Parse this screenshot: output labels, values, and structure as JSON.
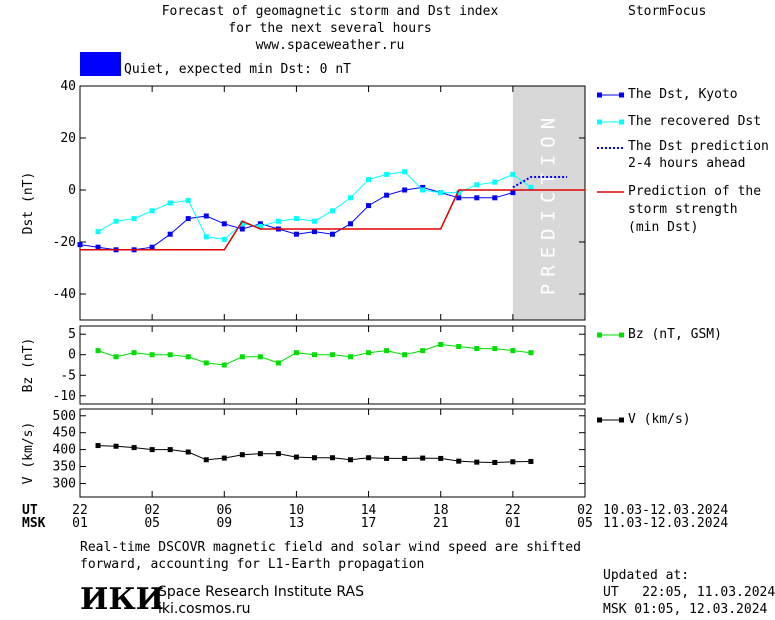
{
  "header": {
    "title_lines": [
      "Forecast of geomagnetic storm and Dst index",
      "for the next several hours",
      "www.spaceweather.ru"
    ],
    "brand": "StormFocus",
    "status_label": "Quiet, expected min Dst: 0 nT",
    "status_color": "#0000ff"
  },
  "prediction_label": "PREDICTION",
  "legend": {
    "dst_kyoto": "The Dst, Kyoto",
    "dst_recovered": "The recovered Dst",
    "dst_pred_1": "The Dst prediction",
    "dst_pred_2": "2-4 hours ahead",
    "storm_1": "Prediction of the",
    "storm_2": "storm strength",
    "storm_3": "(min Dst)",
    "bz": "Bz (nT, GSM)",
    "v": "V (km/s)"
  },
  "time_axis": {
    "ut_label": "UT",
    "msk_label": "MSK",
    "ut_ticks": [
      "22",
      "02",
      "06",
      "10",
      "14",
      "18",
      "22",
      "02"
    ],
    "msk_ticks": [
      "01",
      "05",
      "09",
      "13",
      "17",
      "21",
      "01",
      "05"
    ],
    "ut_range": "10.03-12.03.2024",
    "msk_range": "11.03-12.03.2024"
  },
  "footer": {
    "note_1": "Real-time DSCOVR magnetic field and solar wind speed are shifted",
    "note_2": "forward, accounting for L1-Earth propagation",
    "logo_text": "ИКИ",
    "institute": "Space Research Institute RAS",
    "site": "iki.cosmos.ru",
    "updated_label": "Updated at:",
    "updated_ut": "UT   22:05, 11.03.2024",
    "updated_msk": "MSK 01:05, 12.03.2024"
  },
  "colors": {
    "dst_kyoto": "#0000ff",
    "dst_recovered": "#00ffff",
    "dst_prediction": "#0000ff",
    "storm": "#dd0000",
    "bz": "#00dd00",
    "v": "#000000",
    "prediction_bg": "#d8d8d8"
  },
  "chart_data": [
    {
      "type": "line",
      "ylabel": "Dst (nT)",
      "xlim": [
        0,
        28
      ],
      "ylim": [
        -50,
        40
      ],
      "yticks": [
        40,
        20,
        0,
        -20,
        -40
      ],
      "prediction_start": 24,
      "series": [
        {
          "name": "The Dst, Kyoto",
          "x": [
            0,
            1,
            2,
            3,
            4,
            5,
            6,
            7,
            8,
            9,
            10,
            11,
            12,
            13,
            14,
            15,
            16,
            17,
            18,
            19,
            20,
            21,
            22,
            23,
            24
          ],
          "y": [
            -21,
            -22,
            -23,
            -23,
            -22,
            -17,
            -11,
            -10,
            -13,
            -15,
            -13,
            -15,
            -17,
            -16,
            -17,
            -13,
            -6,
            -2,
            0,
            1,
            -1,
            -3,
            -3,
            -3,
            -1
          ]
        },
        {
          "name": "The recovered Dst",
          "x": [
            1,
            2,
            3,
            4,
            5,
            6,
            7,
            8,
            9,
            10,
            11,
            12,
            13,
            14,
            15,
            16,
            17,
            18,
            19,
            20,
            21,
            22,
            23,
            24,
            25
          ],
          "y": [
            -16,
            -12,
            -11,
            -8,
            -5,
            -4,
            -18,
            -19,
            -13,
            -14,
            -12,
            -11,
            -12,
            -8,
            -3,
            4,
            6,
            7,
            0,
            -1,
            -1,
            2,
            3,
            6,
            1
          ]
        },
        {
          "name": "The Dst prediction 2-4 hours ahead",
          "x": [
            24,
            25,
            26,
            27
          ],
          "y": [
            1,
            5,
            5,
            5
          ]
        },
        {
          "name": "Prediction of the storm strength (min Dst)",
          "x": [
            0,
            8,
            9,
            10,
            20,
            21,
            28
          ],
          "y": [
            -23,
            -23,
            -12,
            -15,
            -15,
            0,
            0
          ]
        }
      ]
    },
    {
      "type": "line",
      "ylabel": "Bz (nT)",
      "xlim": [
        0,
        28
      ],
      "ylim": [
        -12,
        7
      ],
      "yticks": [
        5,
        0,
        -5,
        -10
      ],
      "series": [
        {
          "name": "Bz (nT, GSM)",
          "x": [
            1,
            2,
            3,
            4,
            5,
            6,
            7,
            8,
            9,
            10,
            11,
            12,
            13,
            14,
            15,
            16,
            17,
            18,
            19,
            20,
            21,
            22,
            23,
            24,
            25
          ],
          "y": [
            1,
            -0.5,
            0.5,
            0,
            0,
            -0.5,
            -2,
            -2.5,
            -0.5,
            -0.5,
            -2,
            0.5,
            0,
            0,
            -0.5,
            0.5,
            1,
            0,
            1,
            2.5,
            2,
            1.5,
            1.5,
            1,
            0.5
          ]
        }
      ]
    },
    {
      "type": "line",
      "ylabel": "V (km/s)",
      "xlim": [
        0,
        28
      ],
      "ylim": [
        260,
        520
      ],
      "yticks": [
        500,
        450,
        400,
        350,
        300
      ],
      "series": [
        {
          "name": "V (km/s)",
          "x": [
            1,
            2,
            3,
            4,
            5,
            6,
            7,
            8,
            9,
            10,
            11,
            12,
            13,
            14,
            15,
            16,
            17,
            18,
            19,
            20,
            21,
            22,
            23,
            24,
            25
          ],
          "y": [
            412,
            410,
            406,
            400,
            400,
            393,
            370,
            375,
            385,
            388,
            388,
            378,
            376,
            376,
            370,
            376,
            374,
            374,
            375,
            374,
            366,
            363,
            362,
            364,
            365
          ]
        }
      ]
    }
  ]
}
